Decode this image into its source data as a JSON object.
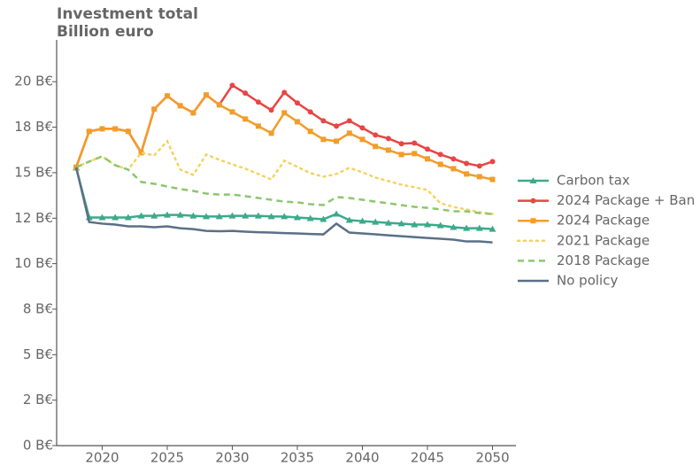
{
  "chart_data": {
    "type": "line",
    "ylabel": "Investment total",
    "yunit": "Billion euro",
    "x": [
      2018,
      2019,
      2020,
      2021,
      2022,
      2023,
      2024,
      2025,
      2026,
      2027,
      2028,
      2029,
      2030,
      2031,
      2032,
      2033,
      2034,
      2035,
      2036,
      2037,
      2038,
      2039,
      2040,
      2041,
      2042,
      2043,
      2044,
      2045,
      2046,
      2047,
      2048,
      2049,
      2050
    ],
    "xlim": [
      2016.5,
      2051.8
    ],
    "xticks": [
      2020,
      2025,
      2030,
      2035,
      2040,
      2045,
      2050
    ],
    "ylim": [
      0,
      22.3
    ],
    "yticks": [
      {
        "value": 0,
        "label": "0 B€"
      },
      {
        "value": 2.5,
        "label": "2 B€"
      },
      {
        "value": 5,
        "label": "5 B€"
      },
      {
        "value": 7.5,
        "label": "8 B€"
      },
      {
        "value": 10,
        "label": "10 B€"
      },
      {
        "value": 12.5,
        "label": "12 B€"
      },
      {
        "value": 15,
        "label": "15 B€"
      },
      {
        "value": 17.5,
        "label": "18 B€"
      },
      {
        "value": 20,
        "label": "20 B€"
      }
    ],
    "legend": "right",
    "series": [
      {
        "name": "Carbon tax",
        "color": "#3aaa8a",
        "dash": "solid",
        "marker": "triangle",
        "values": [
          15.27,
          12.54,
          12.54,
          12.54,
          12.54,
          12.63,
          12.63,
          12.68,
          12.68,
          12.63,
          12.59,
          12.59,
          12.63,
          12.63,
          12.63,
          12.59,
          12.59,
          12.54,
          12.49,
          12.44,
          12.73,
          12.39,
          12.34,
          12.29,
          12.24,
          12.2,
          12.15,
          12.15,
          12.1,
          12.0,
          11.95,
          11.95,
          11.9
        ]
      },
      {
        "name": "2024 Package + Ban",
        "color": "#e84545",
        "dash": "solid",
        "marker": "circle",
        "values": [
          15.3,
          17.27,
          17.41,
          17.41,
          17.27,
          16.1,
          18.49,
          19.22,
          18.68,
          18.29,
          19.27,
          18.73,
          19.8,
          19.37,
          18.88,
          18.44,
          19.41,
          18.83,
          18.34,
          17.85,
          17.56,
          17.85,
          17.46,
          17.07,
          16.88,
          16.59,
          16.63,
          16.29,
          16.0,
          15.76,
          15.51,
          15.37,
          15.61
        ]
      },
      {
        "name": "2024 Package",
        "color": "#f39c29",
        "dash": "solid",
        "marker": "square",
        "values": [
          15.3,
          17.27,
          17.41,
          17.41,
          17.27,
          16.1,
          18.49,
          19.22,
          18.68,
          18.29,
          19.27,
          18.73,
          18.34,
          17.95,
          17.56,
          17.17,
          18.29,
          17.8,
          17.27,
          16.83,
          16.73,
          17.17,
          16.83,
          16.44,
          16.24,
          16.0,
          16.05,
          15.76,
          15.46,
          15.22,
          14.93,
          14.78,
          14.63
        ]
      },
      {
        "name": "2021 Package",
        "color": "#f4d35e",
        "dash": "dotted",
        "marker": "none",
        "values": [
          15.3,
          15.61,
          15.9,
          15.41,
          15.17,
          16.1,
          15.95,
          16.73,
          15.17,
          14.88,
          16.0,
          15.71,
          15.46,
          15.22,
          14.93,
          14.63,
          15.66,
          15.32,
          14.98,
          14.78,
          14.93,
          15.27,
          15.02,
          14.73,
          14.54,
          14.34,
          14.2,
          14.05,
          13.32,
          13.12,
          12.98,
          12.83,
          12.73
        ]
      },
      {
        "name": "2018 Package",
        "color": "#8cc66d",
        "dash": "dashed",
        "marker": "none",
        "values": [
          15.3,
          15.61,
          15.9,
          15.41,
          15.17,
          14.49,
          14.39,
          14.24,
          14.1,
          14.0,
          13.85,
          13.8,
          13.8,
          13.71,
          13.61,
          13.51,
          13.41,
          13.37,
          13.27,
          13.22,
          13.66,
          13.61,
          13.51,
          13.41,
          13.32,
          13.22,
          13.12,
          13.07,
          12.98,
          12.88,
          12.88,
          12.78,
          12.73
        ]
      },
      {
        "name": "No policy",
        "color": "#5a7086",
        "dash": "solid",
        "marker": "none",
        "values": [
          15.3,
          12.29,
          12.2,
          12.15,
          12.05,
          12.05,
          12.0,
          12.05,
          11.95,
          11.9,
          11.8,
          11.78,
          11.8,
          11.76,
          11.73,
          11.71,
          11.68,
          11.66,
          11.63,
          11.61,
          12.2,
          11.71,
          11.66,
          11.61,
          11.56,
          11.51,
          11.46,
          11.41,
          11.37,
          11.32,
          11.22,
          11.22,
          11.17
        ]
      }
    ]
  }
}
